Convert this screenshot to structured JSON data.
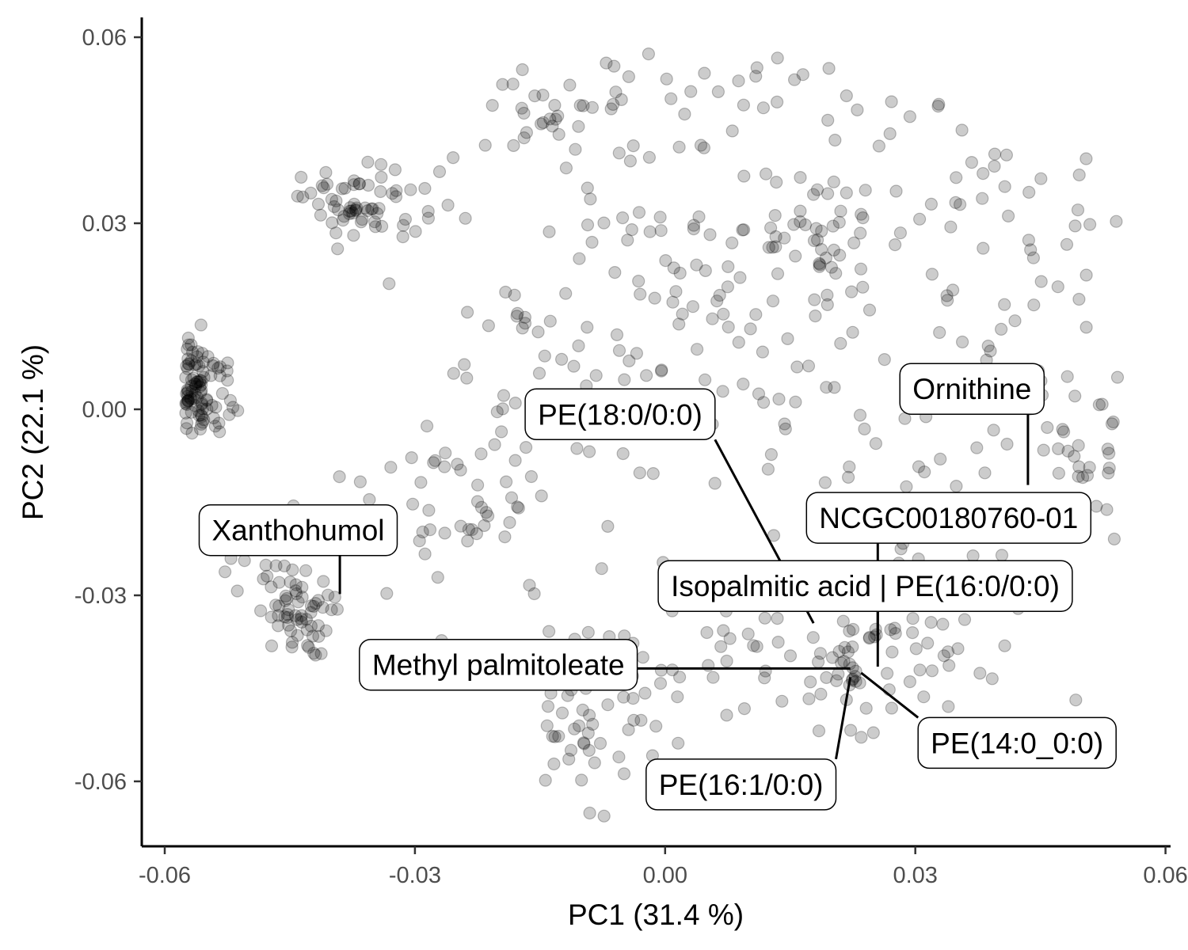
{
  "chart_data": {
    "type": "scatter",
    "xlabel": "PC1 (31.4 %)",
    "ylabel": "PC2 (22.1 %)",
    "xlim": [
      -0.0625,
      0.06
    ],
    "ylim": [
      -0.07,
      0.063
    ],
    "x_ticks": [
      {
        "value": -0.06,
        "label": "-0.06"
      },
      {
        "value": -0.03,
        "label": "-0.03"
      },
      {
        "value": 0.0,
        "label": "0.00"
      },
      {
        "value": 0.03,
        "label": "0.03"
      },
      {
        "value": 0.06,
        "label": "0.06"
      }
    ],
    "y_ticks": [
      {
        "value": 0.06,
        "label": "0.06"
      },
      {
        "value": 0.03,
        "label": "0.03"
      },
      {
        "value": 0.0,
        "label": "0.00"
      },
      {
        "value": -0.03,
        "label": "-0.03"
      },
      {
        "value": -0.06,
        "label": "-0.06"
      }
    ],
    "grid": false,
    "point_color": "#000000",
    "clusters": [
      {
        "cx": -0.0565,
        "cy": 0.003,
        "sx": 0.0008,
        "sy": 0.0045,
        "n": 70
      },
      {
        "cx": -0.054,
        "cy": 0.002,
        "sx": 0.0015,
        "sy": 0.005,
        "n": 25
      },
      {
        "cx": -0.0445,
        "cy": -0.0335,
        "sx": 0.0022,
        "sy": 0.0032,
        "n": 55
      },
      {
        "cx": -0.0485,
        "cy": -0.026,
        "sx": 0.0022,
        "sy": 0.0035,
        "n": 14
      },
      {
        "cx": -0.038,
        "cy": 0.033,
        "sx": 0.0028,
        "sy": 0.0032,
        "n": 48
      },
      {
        "cx": -0.03,
        "cy": 0.031,
        "sx": 0.0035,
        "sy": 0.004,
        "n": 18
      },
      {
        "cx": -0.012,
        "cy": 0.047,
        "sx": 0.006,
        "sy": 0.005,
        "n": 40
      },
      {
        "cx": 0.01,
        "cy": 0.051,
        "sx": 0.009,
        "sy": 0.004,
        "n": 22
      },
      {
        "cx": 0.017,
        "cy": 0.027,
        "sx": 0.007,
        "sy": 0.005,
        "n": 50
      },
      {
        "cx": 0.03,
        "cy": 0.038,
        "sx": 0.012,
        "sy": 0.007,
        "n": 35
      },
      {
        "cx": 0.0045,
        "cy": 0.019,
        "sx": 0.01,
        "sy": 0.008,
        "n": 45
      },
      {
        "cx": 0.044,
        "cy": 0.018,
        "sx": 0.006,
        "sy": 0.012,
        "n": 30
      },
      {
        "cx": 0.05,
        "cy": -0.008,
        "sx": 0.004,
        "sy": 0.006,
        "n": 25
      },
      {
        "cx": 0.024,
        "cy": -0.041,
        "sx": 0.005,
        "sy": 0.005,
        "n": 55
      },
      {
        "cx": 0.012,
        "cy": -0.042,
        "sx": 0.007,
        "sy": 0.006,
        "n": 28
      },
      {
        "cx": -0.009,
        "cy": -0.052,
        "sx": 0.0045,
        "sy": 0.0055,
        "n": 45
      },
      {
        "cx": -0.024,
        "cy": -0.016,
        "sx": 0.008,
        "sy": 0.01,
        "n": 55
      },
      {
        "cx": -0.016,
        "cy": 0.008,
        "sx": 0.007,
        "sy": 0.008,
        "n": 25
      },
      {
        "cx": 0.012,
        "cy": 0.002,
        "sx": 0.014,
        "sy": 0.01,
        "n": 45
      },
      {
        "cx": 0.03,
        "cy": -0.01,
        "sx": 0.008,
        "sy": 0.008,
        "n": 25
      },
      {
        "cx": -0.005,
        "cy": -0.03,
        "sx": 0.008,
        "sy": 0.008,
        "n": 20
      },
      {
        "cx": 0.038,
        "cy": -0.025,
        "sx": 0.006,
        "sy": 0.012,
        "n": 20
      }
    ],
    "annotations": [
      {
        "label": "Ornithine",
        "x": 0.0435,
        "y": -0.0122,
        "box_x": 0.0368,
        "box_y": 0.0033
      },
      {
        "label": "PE(18:0/0:0)",
        "x": 0.0178,
        "y": -0.0345,
        "box_x": -0.0054,
        "box_y": -0.0008
      },
      {
        "label": "NCGC00180760-01",
        "x": 0.0255,
        "y": -0.0375,
        "box_x": 0.034,
        "box_y": -0.0175
      },
      {
        "label": "Isopalmitic acid | PE(16:0/0:0)",
        "x": 0.0255,
        "y": -0.0415,
        "box_x": 0.024,
        "box_y": -0.0285
      },
      {
        "label": "Xanthohumol",
        "x": -0.039,
        "y": -0.0298,
        "box_x": -0.044,
        "box_y": -0.0195
      },
      {
        "label": "Methyl palmitoleate",
        "x": 0.0222,
        "y": -0.0418,
        "box_x": -0.02,
        "box_y": -0.0412
      },
      {
        "label": "PE(14:0_0:0)",
        "x": 0.0235,
        "y": -0.0425,
        "box_x": 0.0422,
        "box_y": -0.0538
      },
      {
        "label": "PE(16:1/0:0)",
        "x": 0.0222,
        "y": -0.0432,
        "box_x": 0.0091,
        "box_y": -0.0605
      }
    ]
  }
}
